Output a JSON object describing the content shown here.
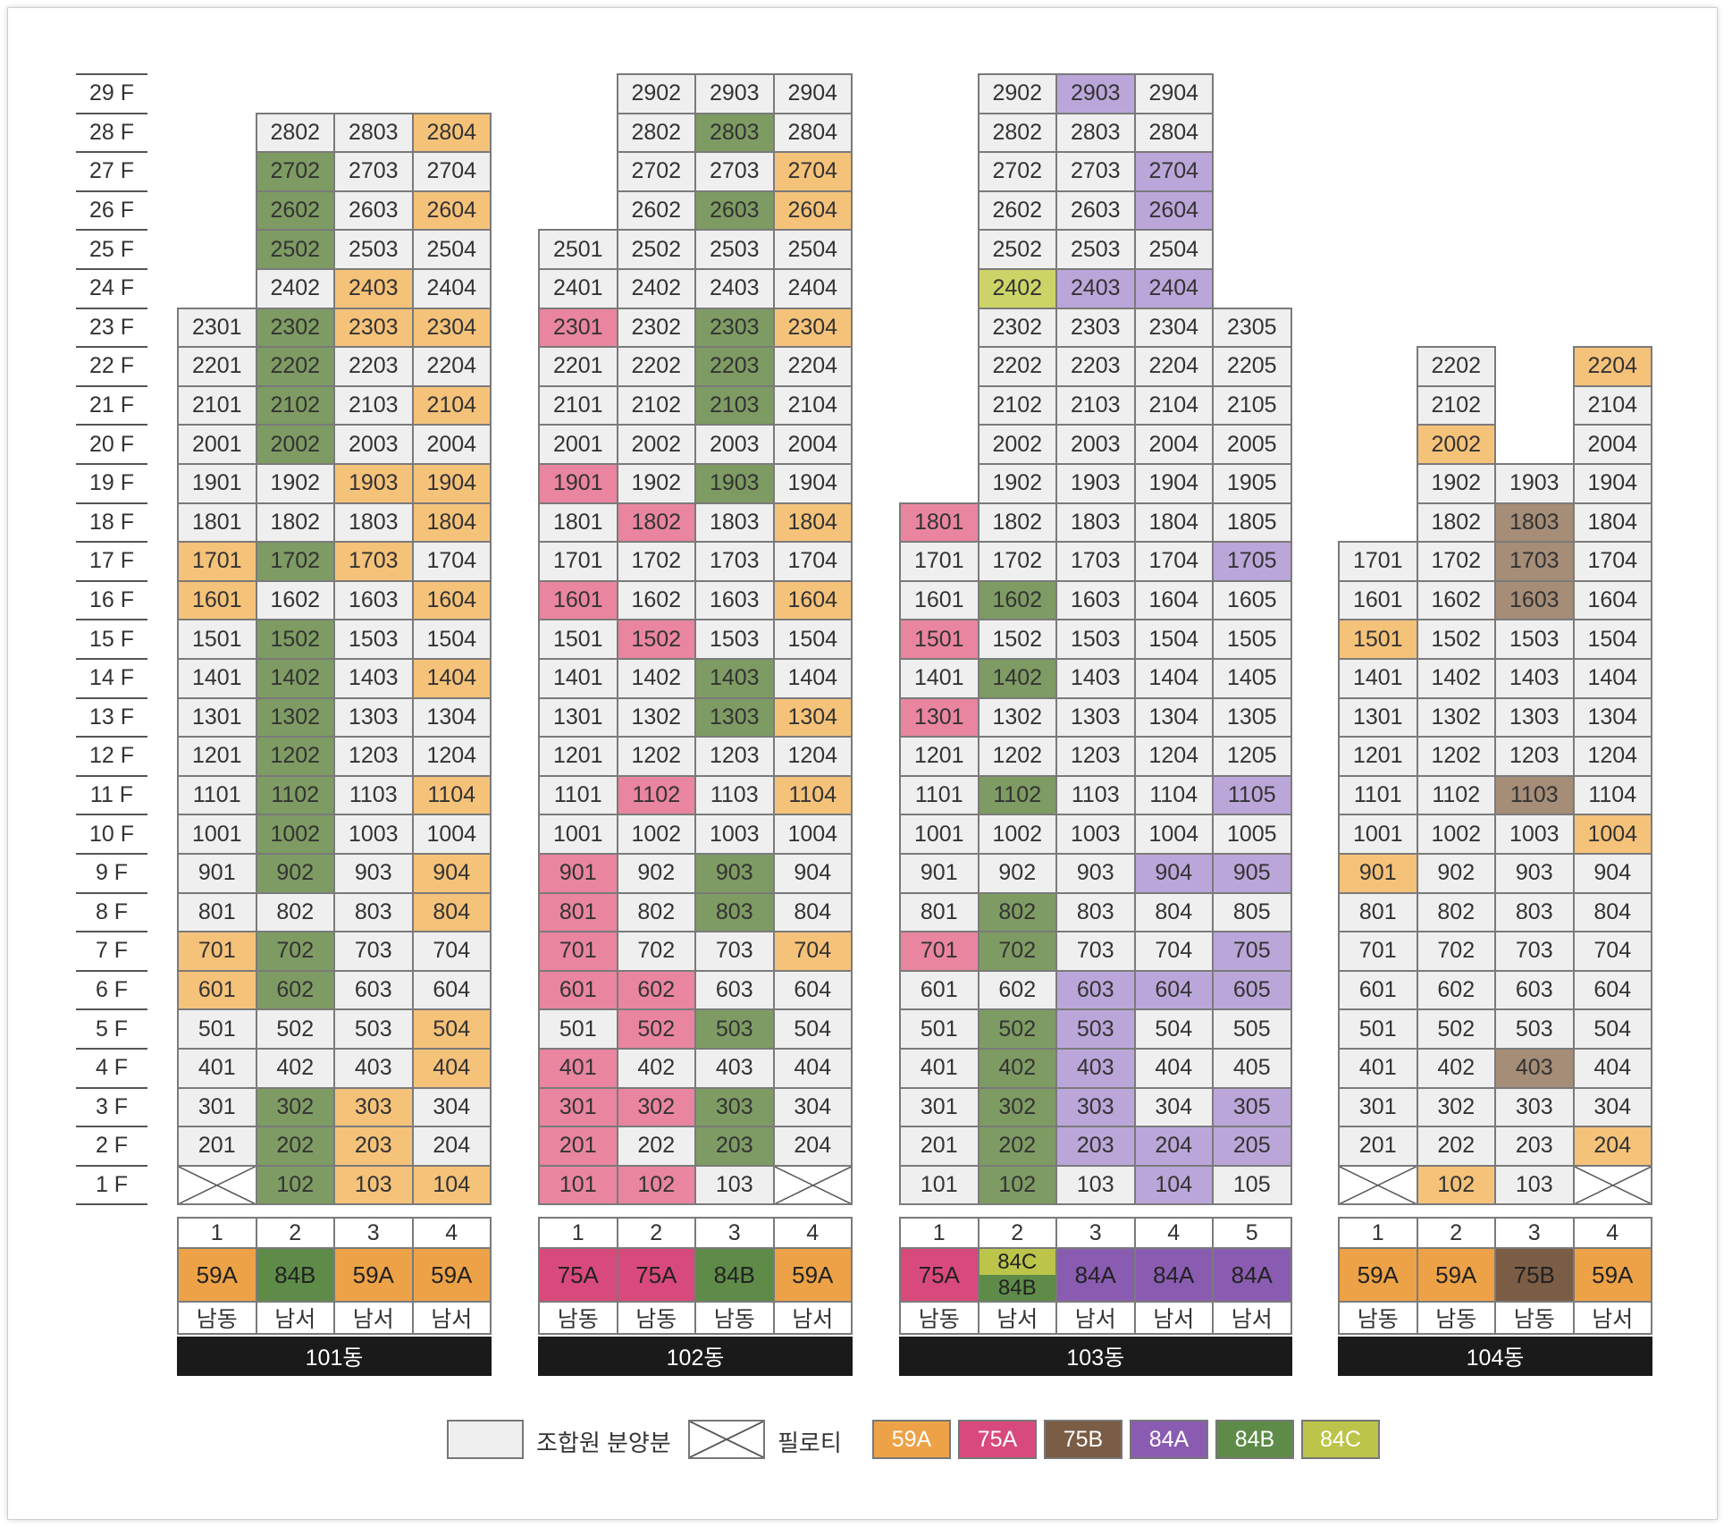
{
  "colors": {
    "unit_default": "#efefef",
    "59A": "#f5c27a",
    "75A": "#e9859f",
    "75B": "#a58d78",
    "84A": "#bba6d9",
    "84B": "#7e9b63",
    "84C": "#cdd467",
    "type_59A": "#eda247",
    "type_75A": "#d94a7c",
    "type_75B": "#7b5c45",
    "type_84A": "#8a5cb1",
    "type_84B": "#5e8c48",
    "type_84C": "#bcc54a"
  },
  "floors": [
    "29 F",
    "28 F",
    "27 F",
    "26 F",
    "25 F",
    "24 F",
    "23 F",
    "22 F",
    "21 F",
    "20 F",
    "19 F",
    "18 F",
    "17 F",
    "16 F",
    "15 F",
    "14 F",
    "13 F",
    "12 F",
    "11 F",
    "10 F",
    "9 F",
    "8 F",
    "7 F",
    "6 F",
    "5 F",
    "4 F",
    "3 F",
    "2 F",
    "1 F"
  ],
  "buildings": [
    {
      "name": "101동",
      "lines": [
        {
          "num": "1",
          "type": "59A",
          "dir": "남동",
          "top": 23,
          "bottom": 1,
          "pilotis": true
        },
        {
          "num": "2",
          "type": "84B",
          "dir": "남서",
          "top": 28,
          "bottom": 1,
          "pilotis": false
        },
        {
          "num": "3",
          "type": "59A",
          "dir": "남서",
          "top": 28,
          "bottom": 1,
          "pilotis": false
        },
        {
          "num": "4",
          "type": "59A",
          "dir": "남서",
          "top": 28,
          "bottom": 1,
          "pilotis": false
        }
      ],
      "sold": {
        "1": [
          7,
          6,
          17,
          16
        ],
        "2": [
          1,
          2,
          3,
          6,
          7,
          9,
          10,
          11,
          12,
          13,
          14,
          15,
          17,
          20,
          21,
          22,
          23,
          25,
          26,
          27
        ],
        "3": [
          1,
          2,
          3,
          17,
          19,
          23,
          24
        ],
        "4": [
          1,
          4,
          5,
          8,
          9,
          11,
          14,
          16,
          18,
          19,
          21,
          23,
          26,
          28
        ]
      }
    },
    {
      "name": "102동",
      "lines": [
        {
          "num": "1",
          "type": "75A",
          "dir": "남동",
          "top": 25,
          "bottom": 1,
          "pilotis": false
        },
        {
          "num": "2",
          "type": "75A",
          "dir": "남동",
          "top": 29,
          "bottom": 1,
          "pilotis": false
        },
        {
          "num": "3",
          "type": "84B",
          "dir": "남동",
          "top": 29,
          "bottom": 1,
          "pilotis": false
        },
        {
          "num": "4",
          "type": "59A",
          "dir": "남서",
          "top": 29,
          "bottom": 1,
          "pilotis": true
        }
      ],
      "sold": {
        "1": [
          1,
          2,
          3,
          4,
          6,
          7,
          8,
          9,
          16,
          19,
          23
        ],
        "2": [
          1,
          3,
          5,
          6,
          11,
          15,
          18
        ],
        "3": [
          2,
          3,
          5,
          8,
          9,
          13,
          14,
          19,
          21,
          22,
          23,
          26,
          28
        ],
        "4": [
          7,
          11,
          13,
          16,
          18,
          23,
          26,
          27
        ]
      }
    },
    {
      "name": "103동",
      "lines": [
        {
          "num": "1",
          "type": "75A",
          "dir": "남동",
          "top": 18,
          "bottom": 1,
          "pilotis": false
        },
        {
          "num": "2",
          "type": "84B",
          "dir": "남서",
          "top": 29,
          "bottom": 1,
          "pilotis": false,
          "split": [
            "84C",
            "84B"
          ]
        },
        {
          "num": "3",
          "type": "84A",
          "dir": "남서",
          "top": 29,
          "bottom": 1,
          "pilotis": false
        },
        {
          "num": "4",
          "type": "84A",
          "dir": "남서",
          "top": 29,
          "bottom": 1,
          "pilotis": false
        },
        {
          "num": "5",
          "type": "84A",
          "dir": "남서",
          "top": 23,
          "bottom": 1,
          "pilotis": false
        }
      ],
      "sold": {
        "1": [
          7,
          13,
          15,
          18
        ],
        "2": [
          1,
          2,
          3,
          4,
          5,
          7,
          8,
          11,
          14,
          16,
          24
        ],
        "3": [
          2,
          3,
          4,
          5,
          6,
          24,
          29
        ],
        "4": [
          1,
          2,
          6,
          9,
          24,
          26,
          27
        ],
        "5": [
          2,
          3,
          6,
          7,
          9,
          11,
          17
        ]
      },
      "special": {
        "2-24": "84C"
      }
    },
    {
      "name": "104동",
      "lines": [
        {
          "num": "1",
          "type": "59A",
          "dir": "남동",
          "top": 17,
          "bottom": 1,
          "pilotis": true
        },
        {
          "num": "2",
          "type": "59A",
          "dir": "남동",
          "top": 22,
          "bottom": 1,
          "pilotis": false
        },
        {
          "num": "3",
          "type": "75B",
          "dir": "남동",
          "top": 19,
          "bottom": 1,
          "pilotis": false
        },
        {
          "num": "4",
          "type": "59A",
          "dir": "남서",
          "top": 22,
          "bottom": 1,
          "pilotis": true
        }
      ],
      "sold": {
        "1": [
          9,
          15
        ],
        "2": [
          1,
          20
        ],
        "3": [
          4,
          11,
          16,
          17,
          18
        ],
        "4": [
          2,
          10,
          22
        ]
      }
    }
  ],
  "legend": {
    "union_label": "조합원 분양분",
    "pilotis_label": "필로티",
    "types": [
      "59A",
      "75A",
      "75B",
      "84A",
      "84B",
      "84C"
    ]
  }
}
